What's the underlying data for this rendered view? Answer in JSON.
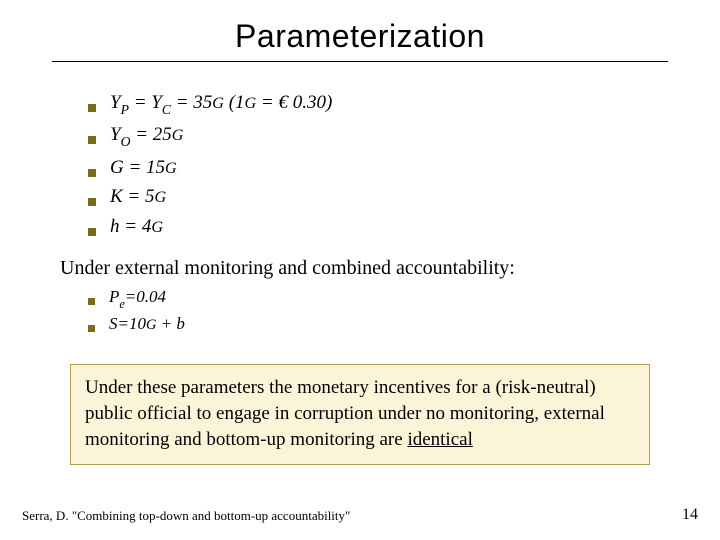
{
  "colors": {
    "bullet": "#7a6a1e",
    "callout_bg": "#fbf4d9",
    "callout_border": "#b0a050",
    "text": "#000000",
    "bg": "#ffffff"
  },
  "title": "Parameterization",
  "params": [
    {
      "lhs": "Y<span class='sub-v'>P</span> = Y<span class='sub-v'>C</span> = 35<span class='sc'>G</span> (1<span class='sc'>G</span> = € 0.30)"
    },
    {
      "lhs": "Y<span class='sub-v'>O</span> = 25<span class='sc'>G</span>"
    },
    {
      "lhs": "G = 15<span class='sc'>G</span>"
    },
    {
      "lhs": "K = 5<span class='sc'>G</span>"
    },
    {
      "lhs": "h = 4<span class='sc'>G</span>"
    }
  ],
  "subhead": "Under external monitoring and combined accountability:",
  "sub_params": [
    {
      "lhs": "P<span class='sub-v'>e</span>=0.04"
    },
    {
      "lhs": "S=10<span class='sc'>G</span> + b"
    }
  ],
  "callout_html": "Under these parameters the monetary incentives for a (risk-neutral) public official to engage in corruption under no monitoring, external monitoring and bottom-up monitoring are <u>identical</u>",
  "footer_citation": "Serra, D. \"Combining top-down and bottom-up accountability\"",
  "page_number": "14"
}
